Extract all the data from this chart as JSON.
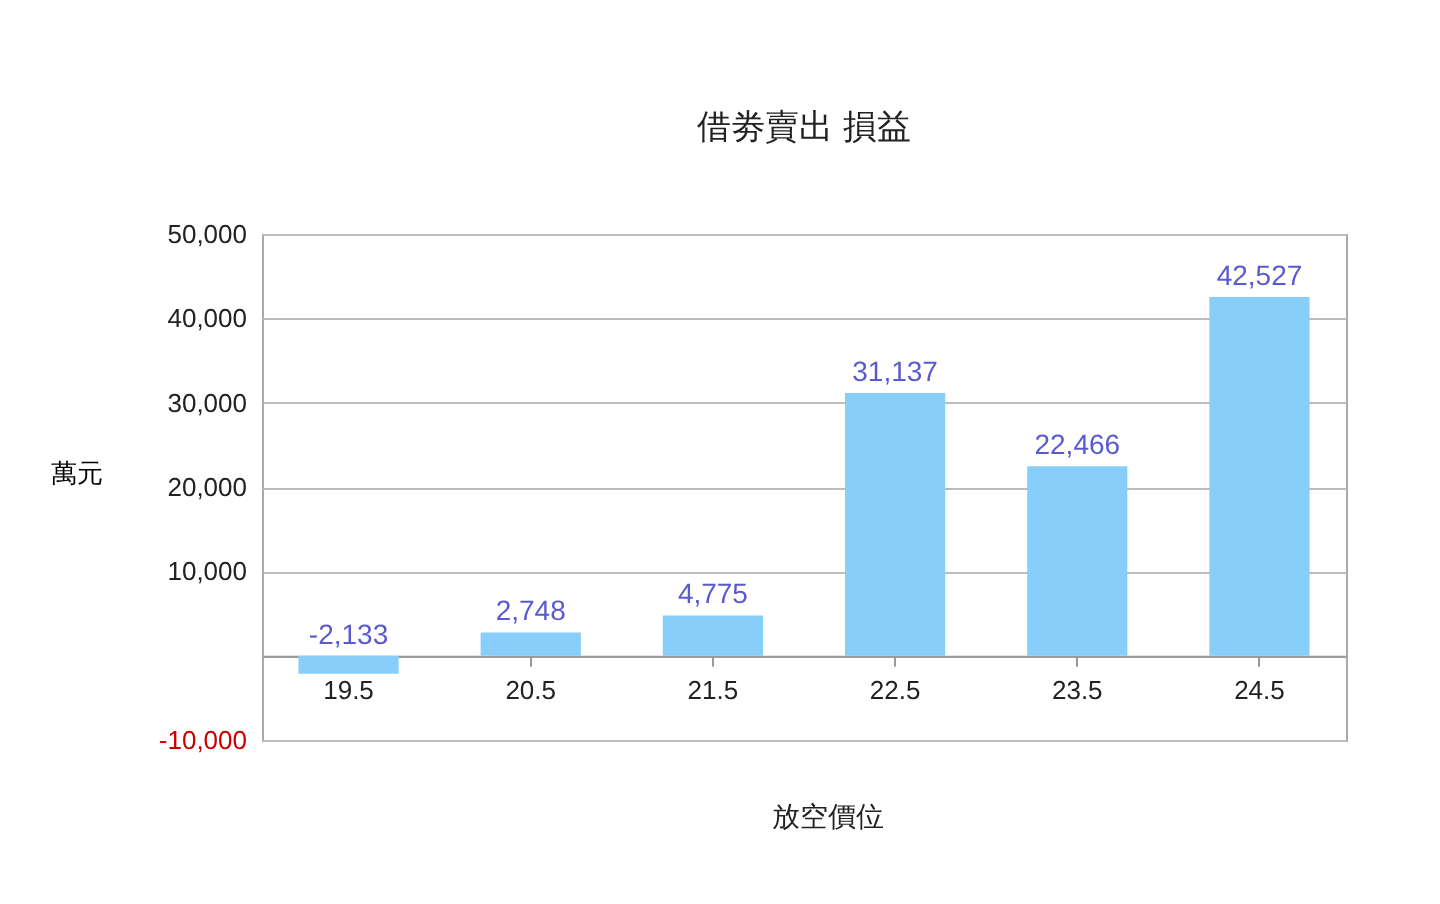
{
  "chart_data": {
    "type": "bar",
    "title": "借劵賣出 損益",
    "xlabel": "放空價位",
    "ylabel": "萬元",
    "categories": [
      "19.5",
      "20.5",
      "21.5",
      "22.5",
      "23.5",
      "24.5"
    ],
    "values": [
      -2133,
      2748,
      4775,
      31137,
      22466,
      42527
    ],
    "color": "#87cefa",
    "ylim": [
      -10000,
      50000
    ],
    "yticks": [
      {
        "value": -10000,
        "label": "-10,000"
      },
      {
        "value": 0,
        "label": null
      },
      {
        "value": 10000,
        "label": "10,000"
      },
      {
        "value": 20000,
        "label": "20,000"
      },
      {
        "value": 30000,
        "label": "30,000"
      },
      {
        "value": 40000,
        "label": "40,000"
      },
      {
        "value": 50000,
        "label": "50,000"
      }
    ],
    "value_labels": [
      "-2,133",
      "2,748",
      "4,775",
      "31,137",
      "22,466",
      "42,527"
    ],
    "grid": "y"
  }
}
